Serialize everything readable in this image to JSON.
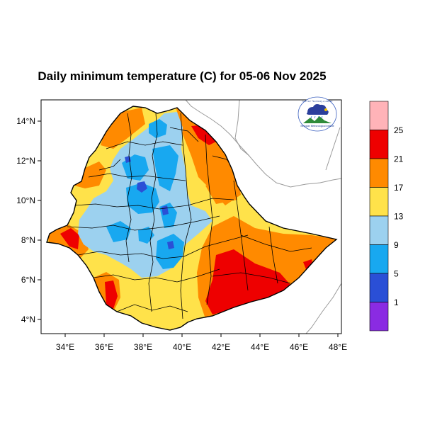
{
  "title": "Daily minimum temperature (C) for 05-06 Nov 2025",
  "axes": {
    "x_ticks": [
      "34°E",
      "36°E",
      "38°E",
      "40°E",
      "42°E",
      "44°E",
      "46°E",
      "48°E"
    ],
    "y_ticks": [
      "14°N",
      "12°N",
      "10°N",
      "8°N",
      "6°N",
      "4°N"
    ]
  },
  "legend": {
    "labels": [
      "1",
      "5",
      "9",
      "13",
      "17",
      "21",
      "25"
    ],
    "colors": [
      "#8a2be2",
      "#2a4fd6",
      "#18a8f0",
      "#9cd1ef",
      "#ffe24a",
      "#ff8a00",
      "#ee0000",
      "#ffb3b8"
    ]
  },
  "logo": {
    "top_text": "የኢትዮጵያ ሜቲዎሮሎጂ ኢንስቲትዩት",
    "bottom_text": "Ethiopian Meteorological Institute"
  }
}
